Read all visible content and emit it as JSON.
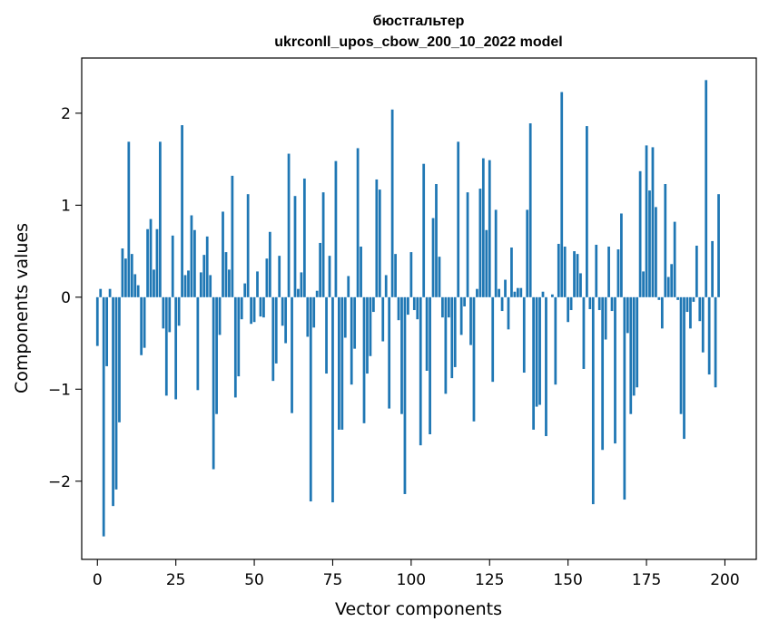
{
  "chart_data": {
    "type": "bar",
    "title_line1": "бюстгальтер",
    "title_line2": "ukrconll_upos_cbow_200_10_2022 model",
    "xlabel": "Vector components",
    "ylabel": "Components values",
    "xlim": [
      -5,
      210
    ],
    "ylim": [
      -2.85,
      2.6
    ],
    "xticks": [
      0,
      25,
      50,
      75,
      100,
      125,
      150,
      175,
      200
    ],
    "yticks": [
      -2,
      -1,
      0,
      1,
      2
    ],
    "ytick_labels": [
      "−2",
      "−1",
      "0",
      "1",
      "2"
    ],
    "bar_color": "#1f77b4",
    "grid": false,
    "values": [
      -0.53,
      0.09,
      -2.6,
      -0.75,
      0.09,
      -2.27,
      -2.09,
      -1.36,
      0.53,
      0.42,
      1.69,
      0.47,
      0.25,
      0.13,
      -0.63,
      -0.55,
      0.74,
      0.85,
      0.3,
      0.74,
      1.69,
      -0.34,
      -1.07,
      -0.38,
      0.67,
      -1.11,
      -0.31,
      1.87,
      0.24,
      0.29,
      0.89,
      0.73,
      -1.01,
      0.27,
      0.46,
      0.66,
      0.24,
      -1.87,
      -1.27,
      -0.41,
      0.93,
      0.49,
      0.3,
      1.32,
      -1.09,
      -0.86,
      -0.24,
      0.15,
      1.12,
      -0.29,
      -0.27,
      0.28,
      -0.21,
      -0.22,
      0.42,
      0.71,
      -0.91,
      -0.72,
      0.45,
      -0.31,
      -0.5,
      1.56,
      -1.26,
      1.1,
      0.09,
      0.27,
      1.29,
      -0.43,
      -2.22,
      -0.33,
      0.07,
      0.59,
      1.14,
      -0.83,
      0.45,
      -2.23,
      1.48,
      -1.44,
      -1.44,
      -0.44,
      0.23,
      -0.95,
      -0.56,
      1.62,
      0.55,
      -1.37,
      -0.83,
      -0.64,
      -0.16,
      1.28,
      1.17,
      -0.48,
      0.24,
      -1.21,
      2.04,
      0.47,
      -0.25,
      -1.27,
      -2.14,
      -0.19,
      0.49,
      -0.14,
      -0.24,
      -1.61,
      1.45,
      -0.8,
      -1.49,
      0.86,
      1.23,
      0.44,
      -0.22,
      -1.05,
      -0.22,
      -0.88,
      -0.76,
      1.69,
      -0.41,
      -0.1,
      1.14,
      -0.52,
      -1.35,
      0.09,
      1.18,
      1.51,
      0.73,
      1.49,
      -0.92,
      0.95,
      0.09,
      -0.15,
      0.19,
      -0.35,
      0.54,
      0.06,
      0.1,
      0.1,
      -0.82,
      0.95,
      1.89,
      -1.44,
      -1.19,
      -1.17,
      0.06,
      -1.51,
      0.0,
      0.03,
      -0.95,
      0.58,
      2.23,
      0.55,
      -0.27,
      -0.14,
      0.5,
      0.47,
      0.26,
      -0.78,
      1.86,
      -0.13,
      -2.25,
      0.57,
      -0.14,
      -1.66,
      -0.46,
      0.55,
      -0.15,
      -1.59,
      0.52,
      0.91,
      -2.2,
      -0.39,
      -1.27,
      -1.07,
      -0.98,
      1.37,
      0.28,
      1.65,
      1.16,
      1.63,
      0.98,
      -0.03,
      -0.34,
      1.23,
      0.22,
      0.36,
      0.82,
      -0.03,
      -1.27,
      -1.54,
      -0.16,
      -0.34,
      -0.05,
      0.56,
      -0.26,
      -0.6,
      2.36,
      -0.84,
      0.61,
      -0.98,
      1.12,
      0.0
    ]
  }
}
